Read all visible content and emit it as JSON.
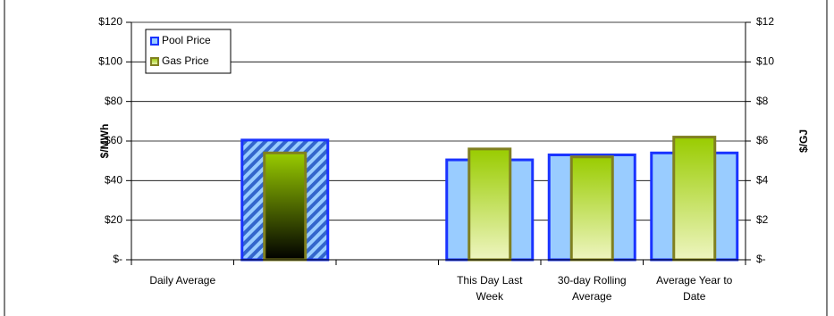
{
  "chart_data": {
    "type": "bar",
    "categories": [
      "Daily Average",
      null,
      null,
      "This Day Last Week",
      "30-day Rolling Average",
      "Average Year to Date"
    ],
    "y_label": "$/MWh",
    "y2_label": "$/GJ",
    "ylim": [
      0,
      120
    ],
    "yticks": [
      {
        "value": 0,
        "label": "$-"
      },
      {
        "value": 20,
        "label": "$20"
      },
      {
        "value": 40,
        "label": "$40"
      },
      {
        "value": 60,
        "label": "$60"
      },
      {
        "value": 80,
        "label": "$80"
      },
      {
        "value": 100,
        "label": "$100"
      },
      {
        "value": 120,
        "label": "$120"
      }
    ],
    "y2lim": [
      0,
      12
    ],
    "y2ticks": [
      {
        "value": 0,
        "label": "$-"
      },
      {
        "value": 2,
        "label": "$2"
      },
      {
        "value": 4,
        "label": "$4"
      },
      {
        "value": 6,
        "label": "$6"
      },
      {
        "value": 8,
        "label": "$8"
      },
      {
        "value": 10,
        "label": "$10"
      },
      {
        "value": 12,
        "label": "$12"
      }
    ],
    "grid": true,
    "legend": "top-left",
    "series": [
      {
        "name": "Pool Price",
        "color": "#99ccff",
        "values": [
          null,
          60.5,
          null,
          50.5,
          53,
          54
        ]
      },
      {
        "name": "Gas Price",
        "color": "#99cc00",
        "axis": "y2",
        "values": [
          null,
          5.4,
          null,
          5.6,
          5.2,
          6.2
        ]
      }
    ]
  }
}
